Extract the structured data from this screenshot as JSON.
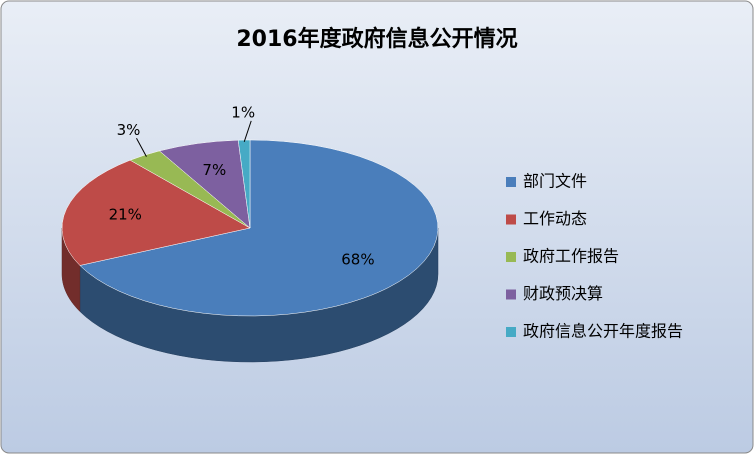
{
  "chart_data": {
    "type": "pie3d",
    "title": "2016年度政府信息公开情况",
    "categories": [
      "部门文件",
      "工作动态",
      "政府工作报告",
      "财政预决算",
      "政府信息公开年度报告"
    ],
    "values": [
      68,
      21,
      3,
      7,
      1
    ],
    "value_labels": [
      "68%",
      "21%",
      "3%",
      "7%",
      "1%"
    ],
    "colors": [
      "#4a7ebb",
      "#be4b48",
      "#98b954",
      "#7d60a0",
      "#46aac5"
    ],
    "legend": "right"
  }
}
